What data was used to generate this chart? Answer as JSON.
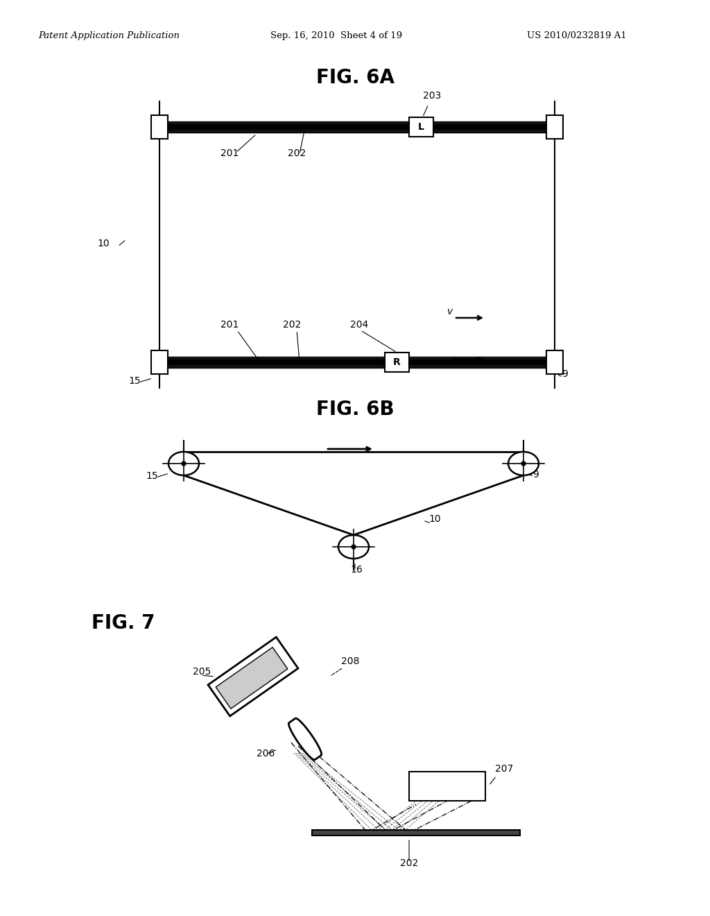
{
  "header_left": "Patent Application Publication",
  "header_center": "Sep. 16, 2010  Sheet 4 of 19",
  "header_right": "US 2010/0232819 A1",
  "fig6a_title": "FIG. 6A",
  "fig6b_title": "FIG. 6B",
  "fig7_title": "FIG. 7",
  "bg_color": "#ffffff",
  "line_color": "#000000"
}
